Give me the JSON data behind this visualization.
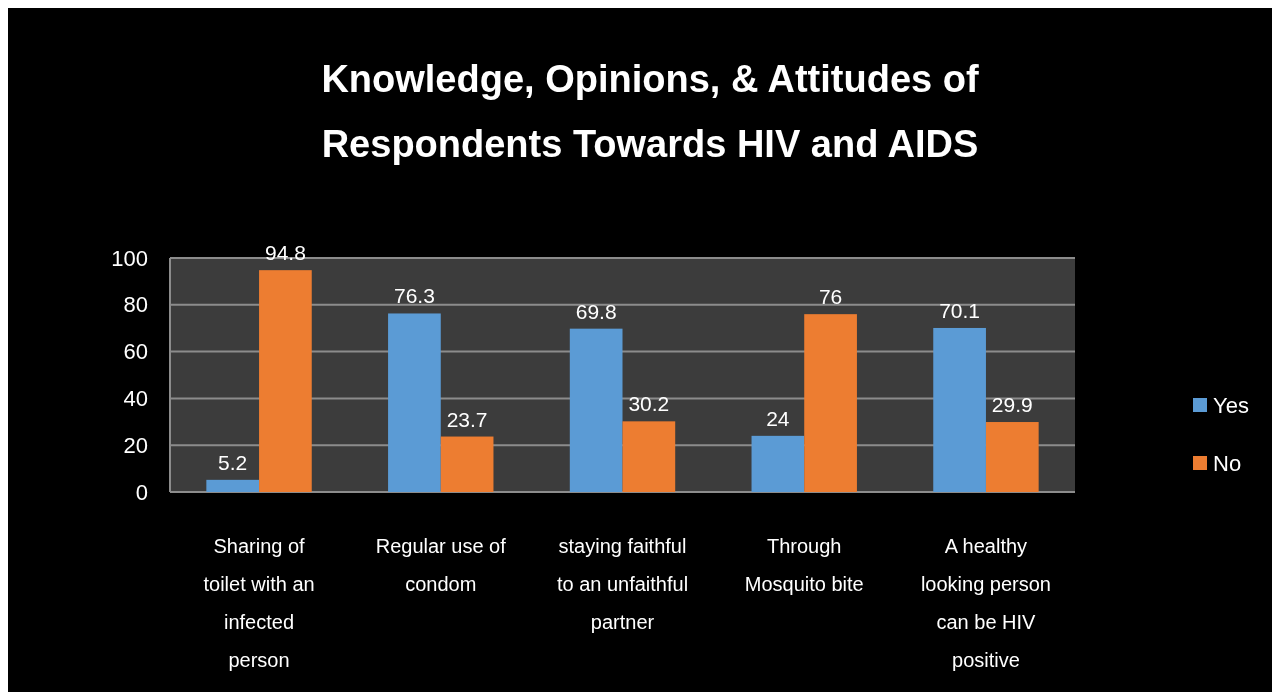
{
  "chart_data": {
    "type": "bar",
    "title": "Knowledge, Opinions, & Attitudes of Respondents Towards HIV and AIDS",
    "categories": [
      "Sharing of toilet with an infected person",
      "Regular use of condom",
      "staying faithful to an unfaithful partner",
      "Through Mosquito bite",
      "A healthy looking person can be HIV positive"
    ],
    "series": [
      {
        "name": "Yes",
        "color": "#5b9bd5",
        "values": [
          5.2,
          76.3,
          69.8,
          24,
          70.1
        ]
      },
      {
        "name": "No",
        "color": "#ed7d31",
        "values": [
          94.8,
          23.7,
          30.2,
          76,
          29.9
        ]
      }
    ],
    "ylim": [
      0,
      100
    ],
    "yticks": [
      0,
      20,
      40,
      60,
      80,
      100
    ],
    "grid": "y",
    "legend": "right",
    "data_labels": true
  }
}
